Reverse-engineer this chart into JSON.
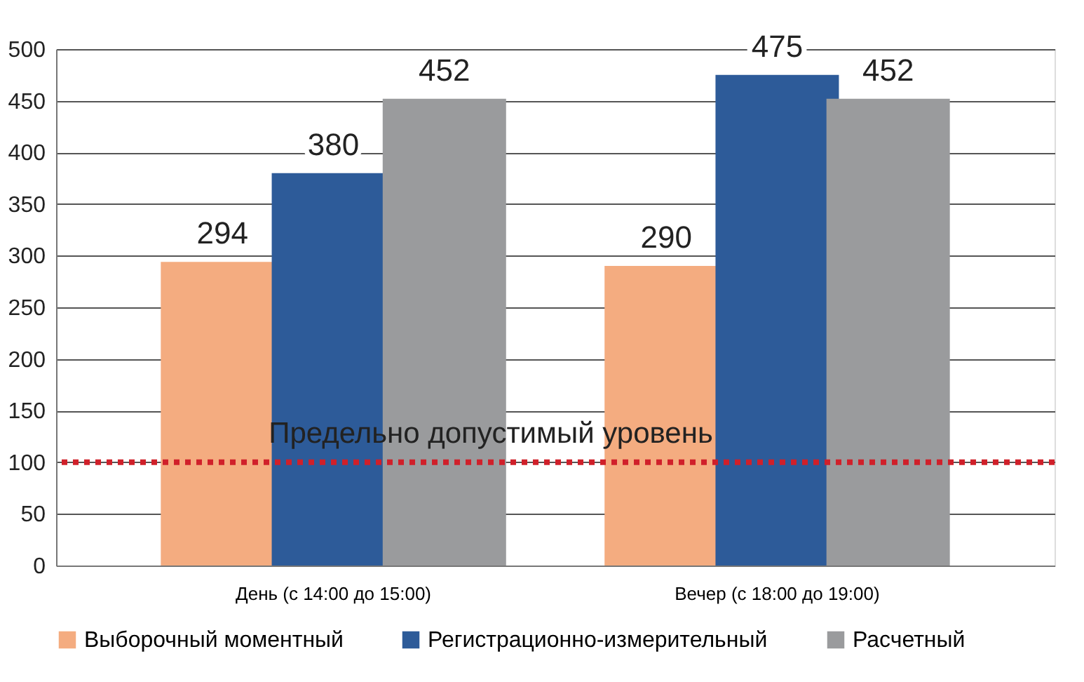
{
  "chart_data": {
    "type": "bar",
    "categories": [
      "День (с 14:00 до 15:00)",
      "Вечер (с 18:00 до 19:00)"
    ],
    "series": [
      {
        "name": "Выборочный моментный",
        "color": "#f4ac80",
        "values": [
          294,
          290
        ]
      },
      {
        "name": "Регистрационно-измерительный",
        "color": "#2d5b99",
        "values": [
          380,
          475
        ]
      },
      {
        "name": "Расчетный",
        "color": "#9a9b9d",
        "values": [
          452,
          452
        ]
      }
    ],
    "ylim": [
      0,
      500
    ],
    "yticks": [
      0,
      50,
      100,
      150,
      200,
      250,
      300,
      350,
      400,
      450,
      500
    ],
    "ref_lines": [
      {
        "axis": "y",
        "value": 100,
        "label": "Предельно допустимый уровень",
        "color": "#d0202a",
        "line_style": "dotted"
      }
    ],
    "data_labels": true,
    "grid": "y",
    "legend": "bottom"
  }
}
